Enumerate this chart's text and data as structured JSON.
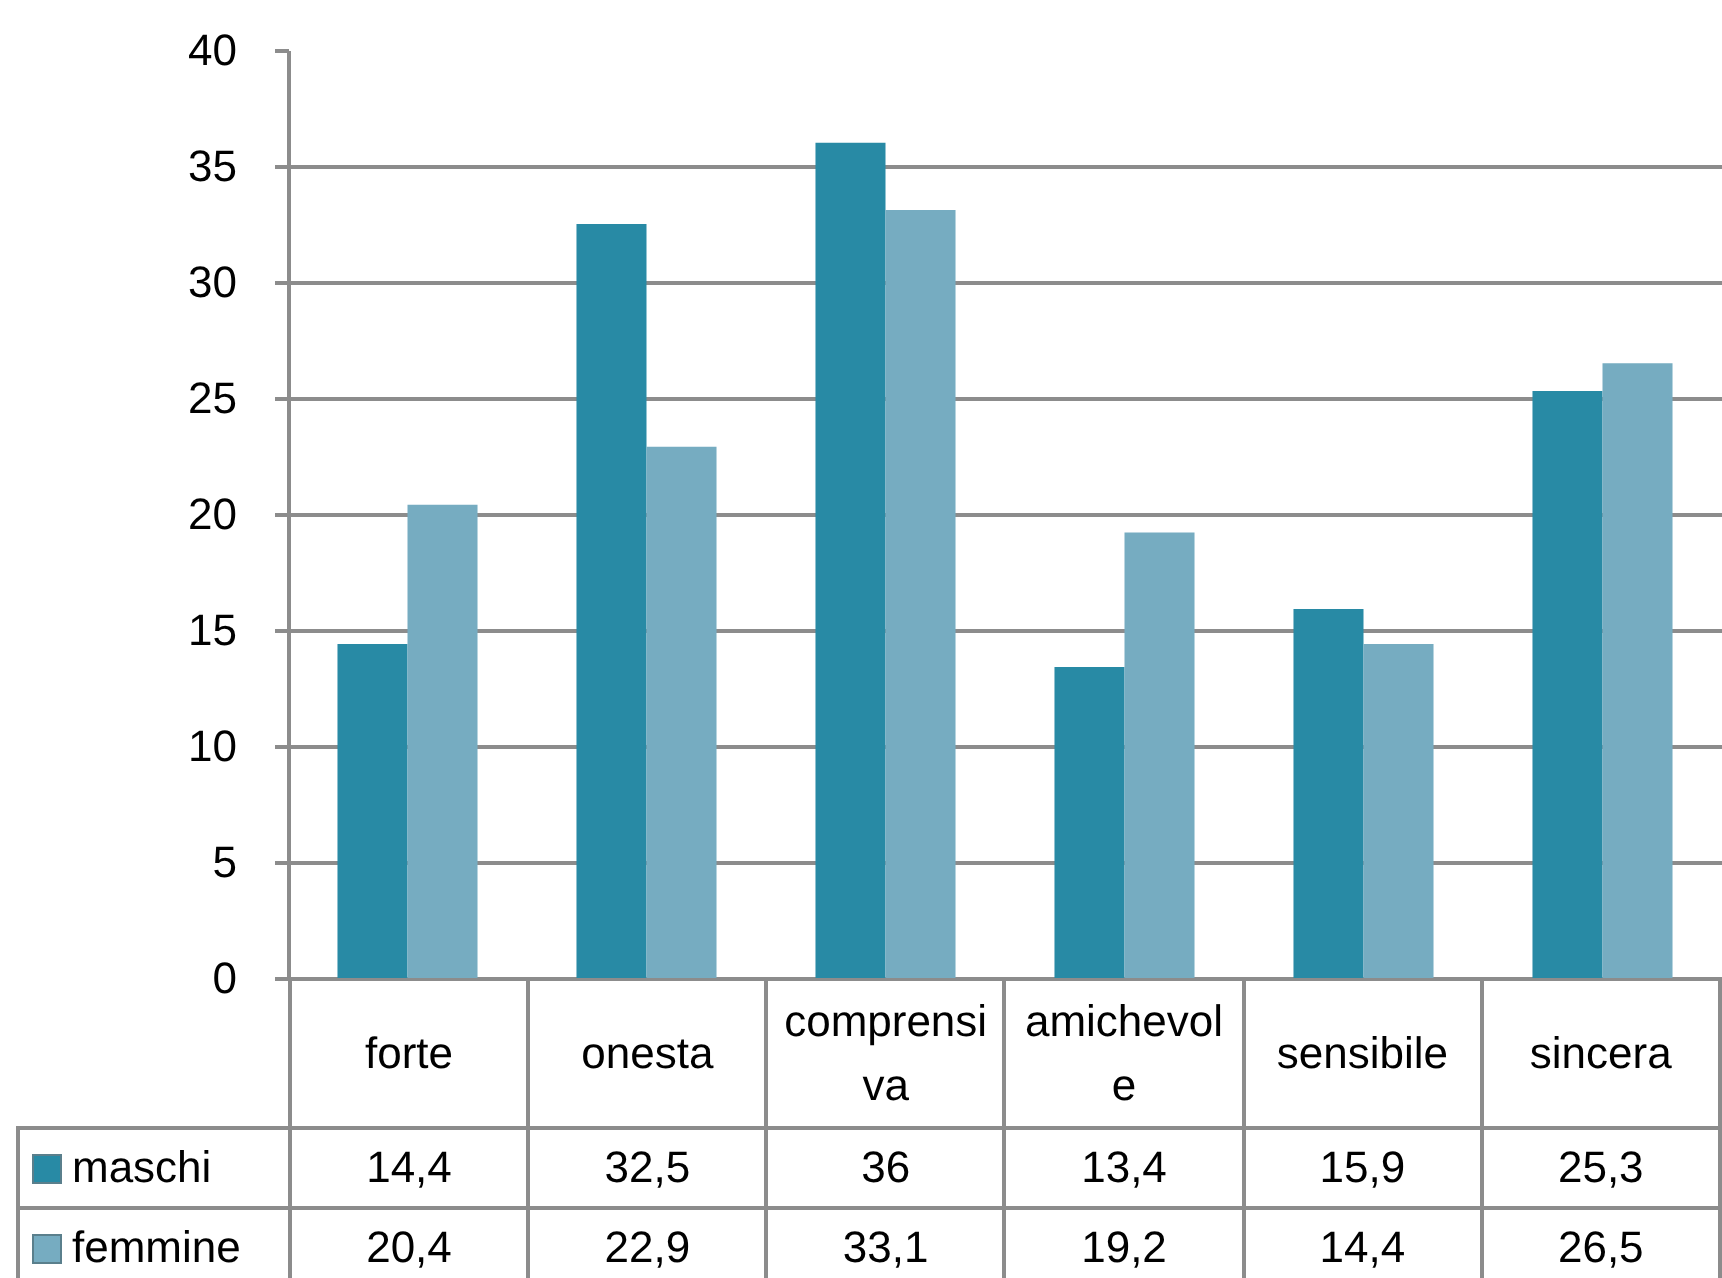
{
  "chart_data": {
    "type": "bar",
    "categories": [
      "forte",
      "onesta",
      "comprensiva",
      "amichevole",
      "sensibile",
      "sincera"
    ],
    "series": [
      {
        "name": "maschi",
        "color": "#288aa5",
        "values": [
          14.4,
          32.5,
          36,
          13.4,
          15.9,
          25.3
        ],
        "value_labels": [
          "14,4",
          "32,5",
          "36",
          "13,4",
          "15,9",
          "25,3"
        ]
      },
      {
        "name": "femmine",
        "color": "#76acc1",
        "values": [
          20.4,
          22.9,
          33.1,
          19.2,
          14.4,
          26.5
        ],
        "value_labels": [
          "20,4",
          "22,9",
          "33,1",
          "19,2",
          "14,4",
          "26,5"
        ]
      }
    ],
    "ylim": [
      0,
      40
    ],
    "yticks": [
      0,
      5,
      10,
      15,
      20,
      25,
      30,
      35,
      40
    ],
    "grid": "y",
    "legend": "bottom left"
  }
}
